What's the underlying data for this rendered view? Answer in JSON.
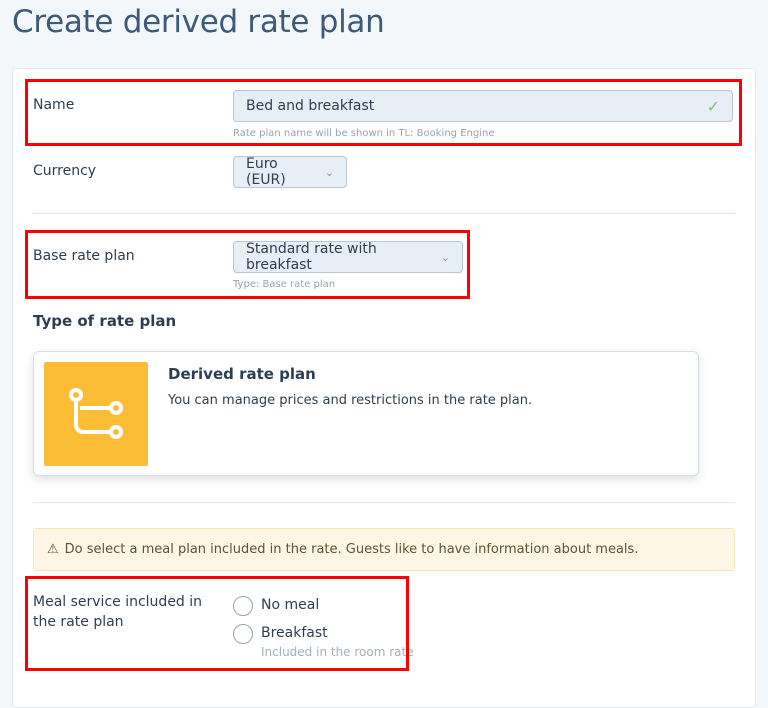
{
  "page": {
    "title": "Create derived rate plan"
  },
  "name": {
    "label": "Name",
    "value": "Bed and breakfast",
    "help": "Rate plan name will be shown in TL: Booking Engine",
    "valid_icon": "check-icon"
  },
  "currency": {
    "label": "Currency",
    "value": "Euro (EUR)"
  },
  "base_rate_plan": {
    "label": "Base rate plan",
    "value": "Standard rate with breakfast",
    "help": "Type: Base rate plan"
  },
  "type_section": {
    "heading": "Type of rate plan",
    "card": {
      "title": "Derived rate plan",
      "description": "You can manage prices and restrictions in the rate plan.",
      "icon": "derived-branch-icon",
      "icon_bg": "#fbbd35"
    }
  },
  "warning": {
    "text": "Do select a meal plan included in the rate. Guests like to have information about meals.",
    "icon": "warning-triangle-icon"
  },
  "meal": {
    "label_line1": "Meal service included in",
    "label_line2": "the rate plan",
    "options": [
      {
        "label": "No meal",
        "selected": false
      },
      {
        "label": "Breakfast",
        "sub": "Included in the room rate",
        "selected": false
      }
    ]
  },
  "colors": {
    "highlight": "#ff0000",
    "accent_text": "#3d5a78"
  }
}
